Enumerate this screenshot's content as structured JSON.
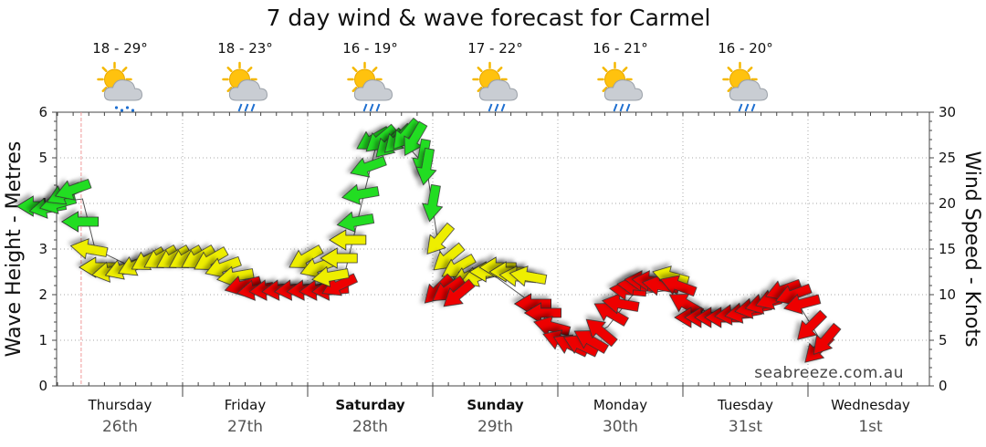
{
  "title": "7 day wind & wave forecast for Carmel",
  "watermark": "seabreeze.com.au",
  "days": [
    {
      "day": "Thursday",
      "date": "26th",
      "bold": false,
      "temp": "18 - 29°",
      "icon": "sun-cloud-showers-icon"
    },
    {
      "day": "Friday",
      "date": "27th",
      "bold": false,
      "temp": "18 - 23°",
      "icon": "sun-cloud-rain-icon"
    },
    {
      "day": "Saturday",
      "date": "28th",
      "bold": true,
      "temp": "16 - 19°",
      "icon": "sun-cloud-rain-icon"
    },
    {
      "day": "Sunday",
      "date": "29th",
      "bold": true,
      "temp": "17 - 22°",
      "icon": "sun-cloud-rain-icon"
    },
    {
      "day": "Monday",
      "date": "30th",
      "bold": false,
      "temp": "16 - 21°",
      "icon": "sun-cloud-rain-icon"
    },
    {
      "day": "Tuesday",
      "date": "31st",
      "bold": false,
      "temp": "16 - 20°",
      "icon": "sun-cloud-rain-icon"
    },
    {
      "day": "Wednesday",
      "date": "1st",
      "bold": false,
      "temp": "",
      "icon": ""
    }
  ],
  "chart_data": {
    "type": "line",
    "title": "7 day wind & wave forecast for Carmel",
    "ylabel": "Wave Height - Metres",
    "y2label": "Wind Speed - Knots",
    "ylim": [
      0,
      6
    ],
    "y2lim": [
      0,
      30
    ],
    "yticks": [
      "0",
      "1",
      "2",
      "3",
      "4",
      "5",
      "6"
    ],
    "y2ticks": [
      "0",
      "5",
      "10",
      "15",
      "20",
      "25",
      "30"
    ],
    "x_unit": "days from start of Thursday 26th",
    "xlim": [
      -0.25,
      6.95
    ],
    "grid": true,
    "now_marker_x": -0.3,
    "speed_colors": {
      "light": "#22dd22",
      "moderate": "#eeee00",
      "strong": "#ee0000"
    },
    "wind_series": [
      {
        "t": -0.18,
        "kn": 19.7,
        "dir": 270,
        "c": "green"
      },
      {
        "t": -0.08,
        "kn": 19.5,
        "dir": 260,
        "c": "green"
      },
      {
        "t": 0.0,
        "kn": 20.0,
        "dir": 255,
        "c": "green"
      },
      {
        "t": 0.05,
        "kn": 21.0,
        "dir": 245,
        "c": "green"
      },
      {
        "t": 0.12,
        "kn": 21.5,
        "dir": 250,
        "c": "green"
      },
      {
        "t": 0.18,
        "kn": 18.0,
        "dir": 270,
        "c": "green"
      },
      {
        "t": 0.25,
        "kn": 15.0,
        "dir": 280,
        "c": "yellow"
      },
      {
        "t": 0.32,
        "kn": 13.0,
        "dir": 270,
        "c": "yellow"
      },
      {
        "t": 0.42,
        "kn": 12.5,
        "dir": 260,
        "c": "yellow"
      },
      {
        "t": 0.52,
        "kn": 12.8,
        "dir": 250,
        "c": "yellow"
      },
      {
        "t": 0.62,
        "kn": 13.2,
        "dir": 245,
        "c": "yellow"
      },
      {
        "t": 0.72,
        "kn": 13.8,
        "dir": 240,
        "c": "yellow"
      },
      {
        "t": 0.82,
        "kn": 14.0,
        "dir": 240,
        "c": "yellow"
      },
      {
        "t": 0.92,
        "kn": 14.0,
        "dir": 240,
        "c": "yellow"
      },
      {
        "t": 1.02,
        "kn": 14.0,
        "dir": 240,
        "c": "yellow"
      },
      {
        "t": 1.12,
        "kn": 14.0,
        "dir": 240,
        "c": "yellow"
      },
      {
        "t": 1.22,
        "kn": 13.8,
        "dir": 240,
        "c": "yellow"
      },
      {
        "t": 1.32,
        "kn": 13.0,
        "dir": 250,
        "c": "yellow"
      },
      {
        "t": 1.42,
        "kn": 12.0,
        "dir": 260,
        "c": "yellow"
      },
      {
        "t": 1.48,
        "kn": 11.0,
        "dir": 255,
        "c": "red"
      },
      {
        "t": 1.58,
        "kn": 10.5,
        "dir": 260,
        "c": "red"
      },
      {
        "t": 1.68,
        "kn": 10.5,
        "dir": 265,
        "c": "red"
      },
      {
        "t": 1.78,
        "kn": 10.5,
        "dir": 265,
        "c": "red"
      },
      {
        "t": 1.88,
        "kn": 10.5,
        "dir": 265,
        "c": "red"
      },
      {
        "t": 1.98,
        "kn": 10.5,
        "dir": 265,
        "c": "red"
      },
      {
        "t": 2.08,
        "kn": 10.5,
        "dir": 265,
        "c": "red"
      },
      {
        "t": 2.18,
        "kn": 10.5,
        "dir": 265,
        "c": "red"
      },
      {
        "t": 2.25,
        "kn": 11.0,
        "dir": 245,
        "c": "red"
      },
      {
        "t": 1.98,
        "kn": 14.0,
        "dir": 240,
        "c": "yellow"
      },
      {
        "t": 2.08,
        "kn": 13.0,
        "dir": 250,
        "c": "yellow"
      },
      {
        "t": 2.18,
        "kn": 12.0,
        "dir": 260,
        "c": "yellow"
      },
      {
        "t": 2.25,
        "kn": 14.0,
        "dir": 270,
        "c": "yellow"
      },
      {
        "t": 2.32,
        "kn": 16.0,
        "dir": 270,
        "c": "yellow"
      },
      {
        "t": 2.38,
        "kn": 18.0,
        "dir": 260,
        "c": "green"
      },
      {
        "t": 2.42,
        "kn": 21.0,
        "dir": 260,
        "c": "green"
      },
      {
        "t": 2.48,
        "kn": 24.0,
        "dir": 250,
        "c": "green"
      },
      {
        "t": 2.52,
        "kn": 27.0,
        "dir": 240,
        "c": "green"
      },
      {
        "t": 2.58,
        "kn": 27.0,
        "dir": 230,
        "c": "green"
      },
      {
        "t": 2.65,
        "kn": 26.5,
        "dir": 225,
        "c": "green"
      },
      {
        "t": 2.72,
        "kn": 27.0,
        "dir": 225,
        "c": "green"
      },
      {
        "t": 2.78,
        "kn": 27.5,
        "dir": 220,
        "c": "green"
      },
      {
        "t": 2.85,
        "kn": 27.0,
        "dir": 210,
        "c": "green"
      },
      {
        "t": 2.92,
        "kn": 25.0,
        "dir": 190,
        "c": "green"
      },
      {
        "t": 2.95,
        "kn": 24.0,
        "dir": 190,
        "c": "green"
      },
      {
        "t": 3.0,
        "kn": 20.0,
        "dir": 190,
        "c": "green"
      },
      {
        "t": 3.05,
        "kn": 16.0,
        "dir": 220,
        "c": "yellow"
      },
      {
        "t": 3.12,
        "kn": 14.0,
        "dir": 230,
        "c": "yellow"
      },
      {
        "t": 3.2,
        "kn": 13.0,
        "dir": 240,
        "c": "yellow"
      },
      {
        "t": 3.28,
        "kn": 12.0,
        "dir": 245,
        "c": "yellow"
      },
      {
        "t": 3.36,
        "kn": 12.0,
        "dir": 250,
        "c": "yellow"
      },
      {
        "t": 3.44,
        "kn": 12.5,
        "dir": 270,
        "c": "yellow"
      },
      {
        "t": 3.52,
        "kn": 13.0,
        "dir": 270,
        "c": "yellow"
      },
      {
        "t": 3.6,
        "kn": 12.5,
        "dir": 270,
        "c": "yellow"
      },
      {
        "t": 3.68,
        "kn": 12.0,
        "dir": 275,
        "c": "yellow"
      },
      {
        "t": 3.76,
        "kn": 12.0,
        "dir": 280,
        "c": "yellow"
      },
      {
        "t": 3.04,
        "kn": 10.5,
        "dir": 225,
        "c": "red"
      },
      {
        "t": 3.12,
        "kn": 10.5,
        "dir": 235,
        "c": "red"
      },
      {
        "t": 3.2,
        "kn": 10.0,
        "dir": 230,
        "c": "red"
      },
      {
        "t": 3.8,
        "kn": 9.0,
        "dir": 270,
        "c": "red"
      },
      {
        "t": 3.88,
        "kn": 8.0,
        "dir": 270,
        "c": "red"
      },
      {
        "t": 3.95,
        "kn": 6.5,
        "dir": 285,
        "c": "red"
      },
      {
        "t": 4.02,
        "kn": 5.0,
        "dir": 290,
        "c": "red"
      },
      {
        "t": 4.1,
        "kn": 4.5,
        "dir": 295,
        "c": "red"
      },
      {
        "t": 4.18,
        "kn": 4.5,
        "dir": 295,
        "c": "red"
      },
      {
        "t": 4.26,
        "kn": 5.0,
        "dir": 300,
        "c": "red"
      },
      {
        "t": 4.34,
        "kn": 6.0,
        "dir": 310,
        "c": "red"
      },
      {
        "t": 4.42,
        "kn": 8.0,
        "dir": 300,
        "c": "red"
      },
      {
        "t": 4.5,
        "kn": 9.0,
        "dir": 280,
        "c": "red"
      },
      {
        "t": 4.56,
        "kn": 10.5,
        "dir": 275,
        "c": "red"
      },
      {
        "t": 4.62,
        "kn": 11.0,
        "dir": 275,
        "c": "red"
      },
      {
        "t": 4.68,
        "kn": 11.5,
        "dir": 275,
        "c": "red"
      },
      {
        "t": 4.74,
        "kn": 11.5,
        "dir": 275,
        "c": "red"
      },
      {
        "t": 4.82,
        "kn": 11.0,
        "dir": 280,
        "c": "red"
      },
      {
        "t": 4.9,
        "kn": 12.0,
        "dir": 285,
        "c": "yellow"
      },
      {
        "t": 4.96,
        "kn": 11.0,
        "dir": 290,
        "c": "red"
      },
      {
        "t": 5.02,
        "kn": 9.0,
        "dir": 300,
        "c": "red"
      },
      {
        "t": 5.08,
        "kn": 7.5,
        "dir": 270,
        "c": "red"
      },
      {
        "t": 5.16,
        "kn": 7.5,
        "dir": 270,
        "c": "red"
      },
      {
        "t": 5.24,
        "kn": 7.5,
        "dir": 270,
        "c": "red"
      },
      {
        "t": 5.32,
        "kn": 7.5,
        "dir": 270,
        "c": "red"
      },
      {
        "t": 5.4,
        "kn": 7.8,
        "dir": 265,
        "c": "red"
      },
      {
        "t": 5.48,
        "kn": 8.0,
        "dir": 260,
        "c": "red"
      },
      {
        "t": 5.56,
        "kn": 8.5,
        "dir": 260,
        "c": "red"
      },
      {
        "t": 5.64,
        "kn": 9.0,
        "dir": 255,
        "c": "red"
      },
      {
        "t": 5.72,
        "kn": 9.5,
        "dir": 250,
        "c": "red"
      },
      {
        "t": 5.8,
        "kn": 10.5,
        "dir": 250,
        "c": "red"
      },
      {
        "t": 5.88,
        "kn": 10.0,
        "dir": 250,
        "c": "red"
      },
      {
        "t": 5.95,
        "kn": 9.0,
        "dir": 255,
        "c": "red"
      },
      {
        "t": 6.02,
        "kn": 6.5,
        "dir": 225,
        "c": "red"
      },
      {
        "t": 6.08,
        "kn": 4.0,
        "dir": 225,
        "c": "red"
      },
      {
        "t": 6.14,
        "kn": 5.0,
        "dir": 220,
        "c": "red"
      }
    ],
    "wave_series": [
      {
        "t": -0.2,
        "m": 3.95
      },
      {
        "t": 0.2,
        "m": 4.1
      },
      {
        "t": 0.3,
        "m": 3.0
      },
      {
        "t": 0.6,
        "m": 2.6
      },
      {
        "t": 1.0,
        "m": 2.7
      },
      {
        "t": 1.4,
        "m": 2.5
      },
      {
        "t": 1.6,
        "m": 2.15
      },
      {
        "t": 2.0,
        "m": 2.1
      },
      {
        "t": 2.3,
        "m": 2.5
      },
      {
        "t": 2.45,
        "m": 4.2
      },
      {
        "t": 2.55,
        "m": 5.3
      },
      {
        "t": 2.75,
        "m": 5.4
      },
      {
        "t": 2.95,
        "m": 4.8
      },
      {
        "t": 3.05,
        "m": 3.0
      },
      {
        "t": 3.2,
        "m": 2.2
      },
      {
        "t": 3.5,
        "m": 2.4
      },
      {
        "t": 3.8,
        "m": 1.8
      },
      {
        "t": 4.1,
        "m": 0.8
      },
      {
        "t": 4.4,
        "m": 1.3
      },
      {
        "t": 4.6,
        "m": 2.0
      },
      {
        "t": 4.9,
        "m": 2.1
      },
      {
        "t": 5.2,
        "m": 1.6
      },
      {
        "t": 5.6,
        "m": 1.7
      },
      {
        "t": 5.9,
        "m": 1.9
      },
      {
        "t": 6.1,
        "m": 1.0
      }
    ]
  }
}
